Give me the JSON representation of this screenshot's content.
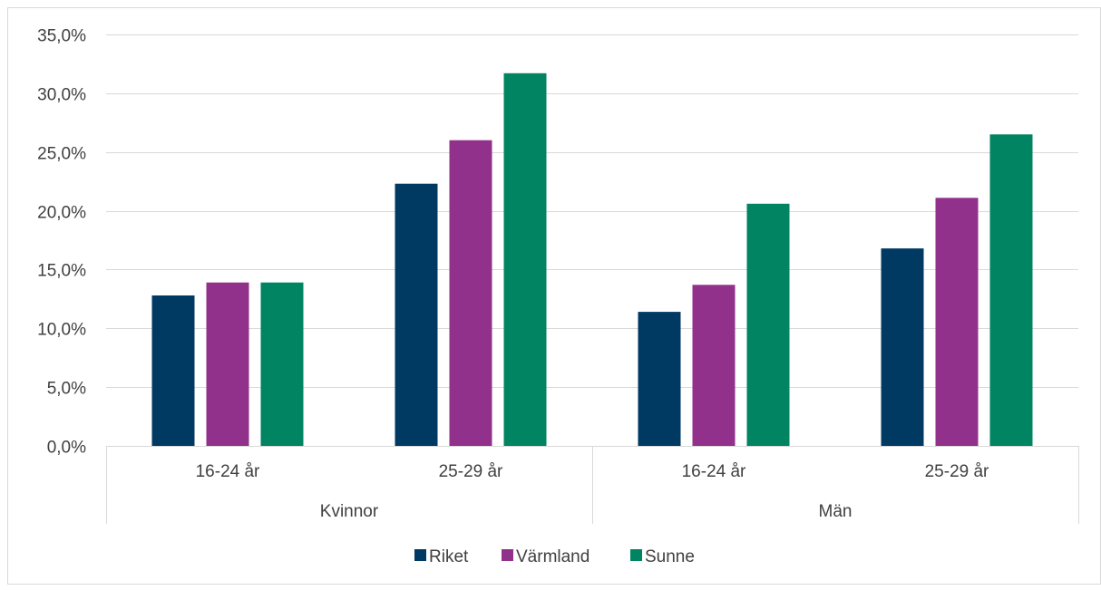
{
  "chart_data": {
    "type": "bar",
    "title": "",
    "xlabel": "",
    "ylabel": "",
    "groups": [
      {
        "name": "Kvinnor",
        "categories": [
          "16-24 år",
          "25-29 år"
        ]
      },
      {
        "name": "Män",
        "categories": [
          "16-24 år",
          "25-29 år"
        ]
      }
    ],
    "categories": [
      "16-24 år",
      "25-29 år",
      "16-24 år",
      "25-29 år"
    ],
    "series": [
      {
        "name": "Riket",
        "color": "#003A63",
        "values": [
          12.8,
          22.3,
          11.4,
          16.8
        ]
      },
      {
        "name": "Värmland",
        "color": "#91318B",
        "values": [
          13.9,
          26.0,
          13.7,
          21.1
        ]
      },
      {
        "name": "Sunne",
        "color": "#008461",
        "values": [
          13.9,
          31.7,
          20.6,
          26.5
        ]
      }
    ],
    "ylim": [
      0,
      35
    ],
    "yticks": [
      "0,0%",
      "5,0%",
      "10,0%",
      "15,0%",
      "20,0%",
      "25,0%",
      "30,0%",
      "35,0%"
    ],
    "grid": true,
    "legend_position": "bottom"
  }
}
